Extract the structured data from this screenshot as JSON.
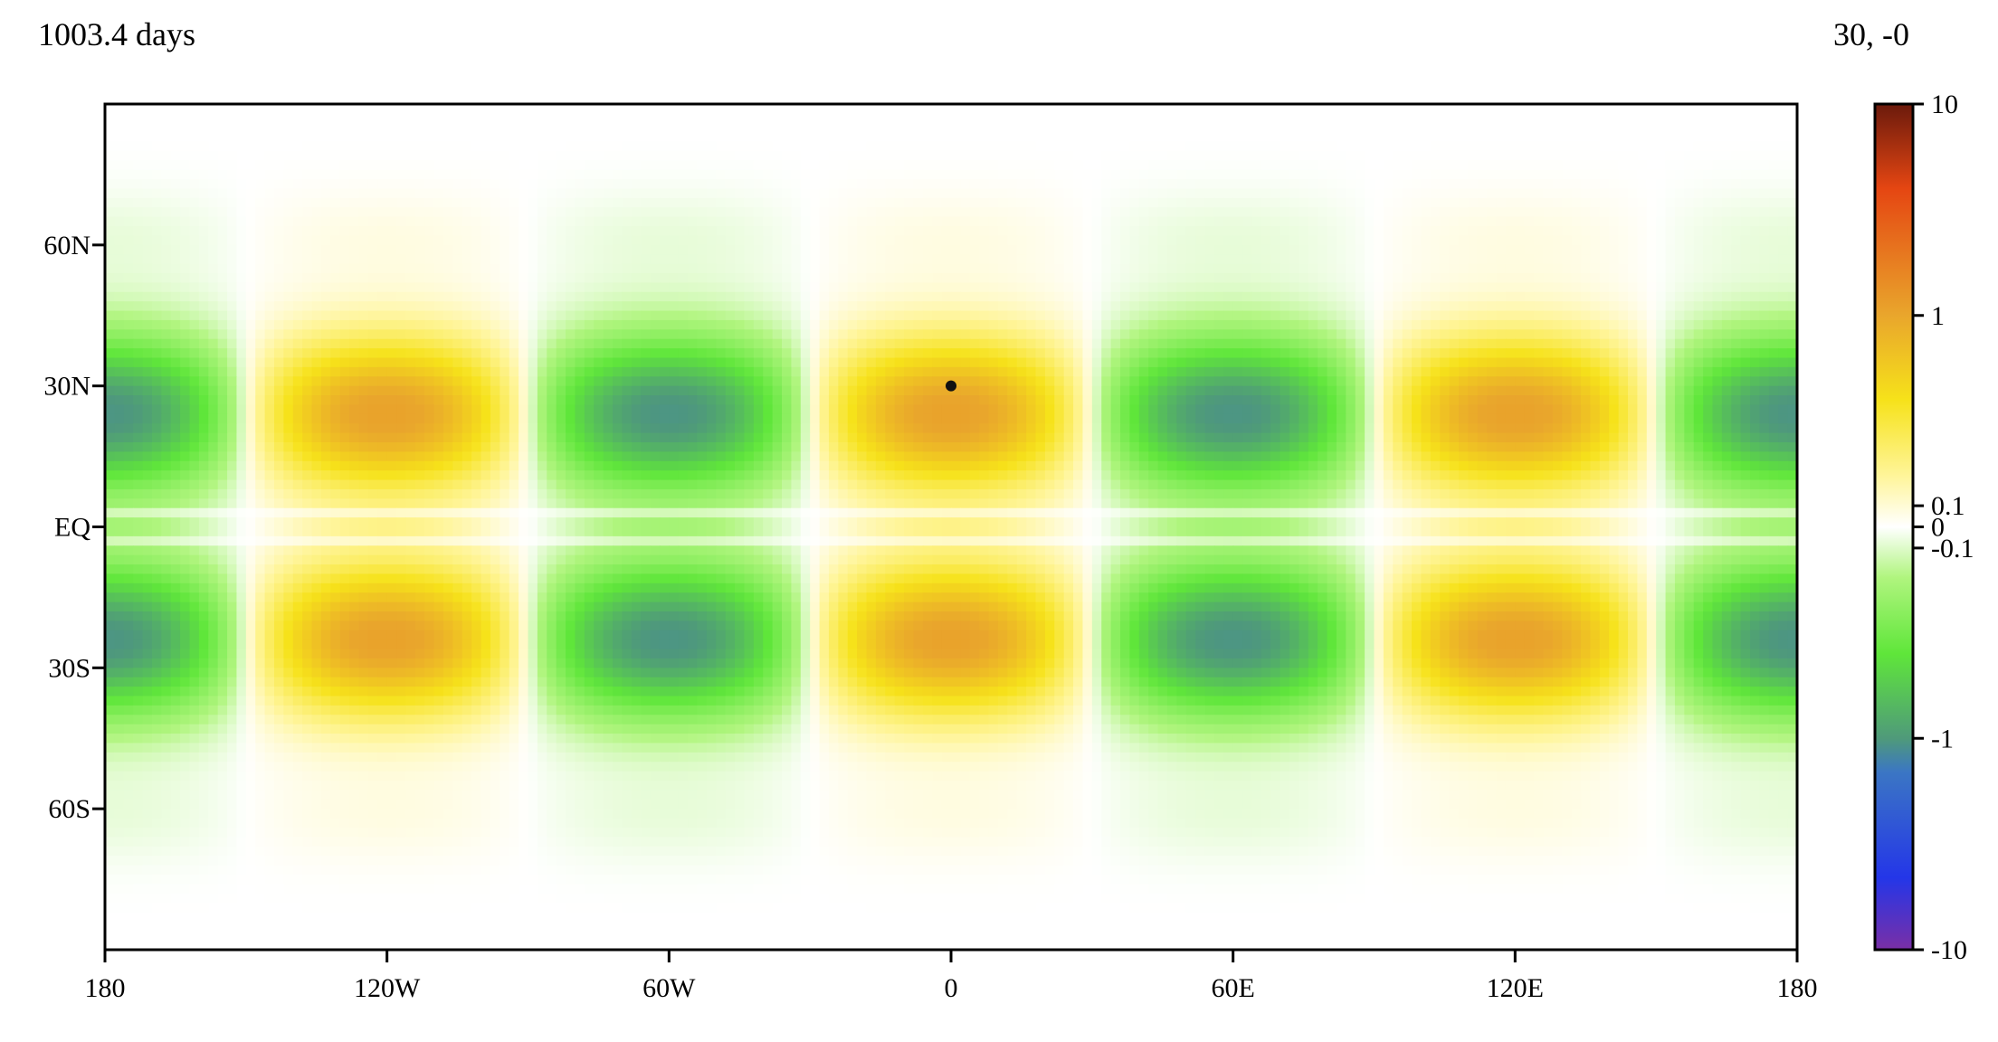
{
  "header": {
    "time_label": "1003.4 days",
    "coord_readout": "30, -0"
  },
  "colors": {
    "frame": "#000000",
    "marker": "#111111",
    "colorbar_stops": [
      "#7a2fa6",
      "#2436e8",
      "#3b76c4",
      "#4f9a7a",
      "#5fe63a",
      "#b0f57e",
      "#ffffff",
      "#fff59a",
      "#f6e21a",
      "#e9a62c",
      "#e54612",
      "#6b1a0c"
    ]
  },
  "chart_data": {
    "type": "heatmap",
    "title": "",
    "xlabel": "",
    "ylabel": "",
    "x_range": [
      -180,
      180
    ],
    "y_range": [
      -90,
      90
    ],
    "x_ticks": [
      {
        "value": -180,
        "label": "180"
      },
      {
        "value": -120,
        "label": "120W"
      },
      {
        "value": -60,
        "label": "60W"
      },
      {
        "value": 0,
        "label": "0"
      },
      {
        "value": 60,
        "label": "60E"
      },
      {
        "value": 120,
        "label": "120E"
      },
      {
        "value": 180,
        "label": "180"
      }
    ],
    "y_ticks": [
      {
        "value": 60,
        "label": "60N"
      },
      {
        "value": 30,
        "label": "30N"
      },
      {
        "value": 0,
        "label": "EQ"
      },
      {
        "value": -30,
        "label": "30S"
      },
      {
        "value": -60,
        "label": "60S"
      }
    ],
    "field": {
      "zonal_wavenumber": 3,
      "peak_value": 1.0,
      "max_lat_offset": 24,
      "description_note": ""
    },
    "marker": {
      "lat": 30,
      "lon": 0
    },
    "colorbar": {
      "scale": "symlog",
      "range": [
        -10,
        10
      ],
      "ticks": [
        {
          "value": 10,
          "label": "10"
        },
        {
          "value": 1,
          "label": "1"
        },
        {
          "value": 0.1,
          "label": "0.1"
        },
        {
          "value": 0,
          "label": "0"
        },
        {
          "value": -0.1,
          "label": "-0.1"
        },
        {
          "value": -1,
          "label": "-1"
        },
        {
          "value": -10,
          "label": "-10"
        }
      ]
    },
    "grid": false
  }
}
